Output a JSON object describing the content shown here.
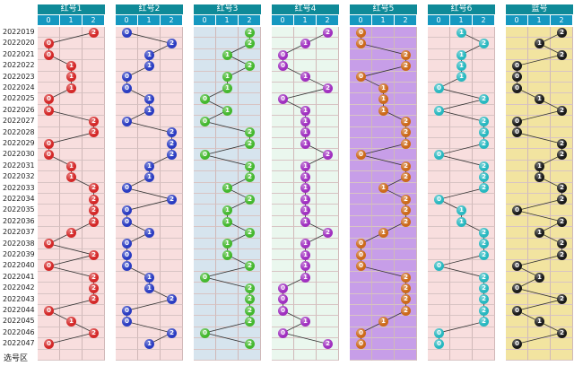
{
  "chart_data": {
    "type": "table",
    "footer_label": "选号区",
    "digit_labels": [
      "0",
      "1",
      "2"
    ],
    "issues": [
      "2022019",
      "2022020",
      "2022021",
      "2022022",
      "2022023",
      "2022024",
      "2022025",
      "2022026",
      "2022027",
      "2022028",
      "2022029",
      "2022030",
      "2022031",
      "2022032",
      "2022033",
      "2022034",
      "2022035",
      "2022036",
      "2022037",
      "2022038",
      "2022039",
      "2022040",
      "2022041",
      "2022042",
      "2022043",
      "2022044",
      "2022045",
      "2022046",
      "2022047"
    ],
    "series": [
      {
        "name": "红号1",
        "ball_color": "#d42828",
        "cell_bg": "#f8dede",
        "values": [
          2,
          0,
          0,
          1,
          1,
          1,
          0,
          0,
          2,
          2,
          0,
          0,
          1,
          1,
          2,
          2,
          2,
          2,
          1,
          0,
          2,
          0,
          2,
          2,
          2,
          0,
          1,
          2,
          0
        ]
      },
      {
        "name": "红号2",
        "ball_color": "#2a3cc2",
        "cell_bg": "#f8dede",
        "values": [
          0,
          2,
          1,
          1,
          0,
          0,
          1,
          1,
          0,
          2,
          2,
          2,
          1,
          1,
          0,
          2,
          0,
          0,
          1,
          0,
          0,
          0,
          1,
          1,
          2,
          0,
          0,
          2,
          1
        ]
      },
      {
        "name": "红号3",
        "ball_color": "#44b82e",
        "cell_bg": "#d6e4ee",
        "values": [
          2,
          2,
          1,
          2,
          1,
          1,
          0,
          1,
          0,
          2,
          2,
          0,
          2,
          2,
          1,
          2,
          1,
          1,
          2,
          1,
          1,
          2,
          0,
          2,
          2,
          2,
          2,
          0,
          2
        ]
      },
      {
        "name": "红号4",
        "ball_color": "#a030c0",
        "cell_bg": "#eaf7ee",
        "values": [
          2,
          1,
          0,
          0,
          1,
          2,
          0,
          1,
          1,
          1,
          1,
          2,
          1,
          1,
          1,
          1,
          1,
          1,
          2,
          1,
          1,
          1,
          1,
          0,
          0,
          0,
          1,
          0,
          2
        ]
      },
      {
        "name": "红号5",
        "ball_color": "#cc6a1a",
        "cell_bg": "#c79ee8",
        "values": [
          0,
          0,
          2,
          2,
          0,
          1,
          1,
          1,
          2,
          2,
          2,
          0,
          2,
          2,
          1,
          2,
          2,
          2,
          1,
          0,
          0,
          0,
          2,
          2,
          2,
          2,
          1,
          0,
          0
        ]
      },
      {
        "name": "红号6",
        "ball_color": "#28b8c0",
        "cell_bg": "#f8dede",
        "values": [
          1,
          2,
          1,
          1,
          1,
          0,
          2,
          0,
          2,
          2,
          2,
          0,
          2,
          2,
          2,
          0,
          1,
          1,
          2,
          2,
          2,
          0,
          2,
          2,
          2,
          2,
          2,
          0,
          0
        ]
      },
      {
        "name": "篮号",
        "ball_color": "#1a1a1a",
        "cell_bg": "#f2e4a0",
        "values": [
          2,
          1,
          2,
          0,
          0,
          0,
          1,
          2,
          0,
          0,
          2,
          2,
          1,
          1,
          2,
          2,
          0,
          2,
          1,
          2,
          2,
          0,
          1,
          0,
          2,
          0,
          1,
          2,
          0
        ]
      }
    ]
  }
}
